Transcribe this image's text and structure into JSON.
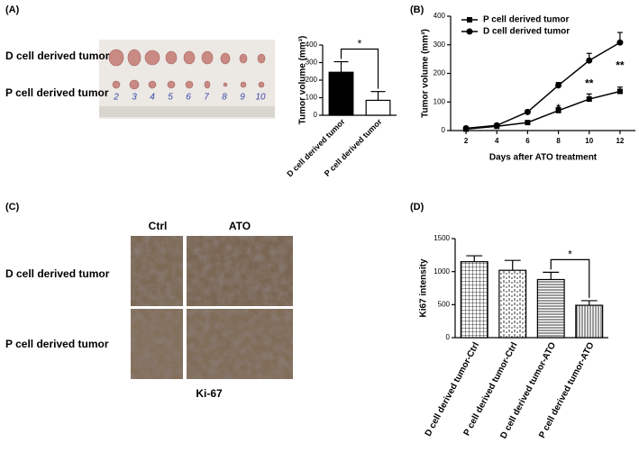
{
  "figure": {
    "panel_labels": [
      "(A)",
      "(B)",
      "(C)",
      "(D)"
    ],
    "photo": {
      "row_labels": [
        "D cell derived tumor",
        "P cell derived tumor"
      ],
      "numbers": [
        "2",
        "3",
        "4",
        "5",
        "6",
        "7",
        "8",
        "9",
        "10"
      ]
    },
    "staining": {
      "column_labels": [
        "Ctrl",
        "ATO"
      ],
      "row_labels": [
        "D cell derived tumor",
        "P cell derived tumor"
      ],
      "caption": "Ki-67"
    }
  },
  "chart_data": [
    {
      "type": "bar",
      "ylabel": "Tumor volume (mm³)",
      "categories": [
        "D cell derived tumor",
        "P cell derived tumor"
      ],
      "values": [
        245,
        85
      ],
      "errors": [
        60,
        50
      ],
      "colors": [
        "#000000",
        "#ffffff"
      ],
      "ylim": [
        0,
        400
      ],
      "yticks": [
        0,
        100,
        200,
        300,
        400
      ],
      "significance": [
        {
          "from": 0,
          "to": 1,
          "label": "*"
        }
      ]
    },
    {
      "type": "line",
      "xlabel": "Days after ATO treatment",
      "ylabel": "Tumor volume (mm³)",
      "x": [
        2,
        4,
        6,
        8,
        10,
        12
      ],
      "series": [
        {
          "name": "P cell derived tumor",
          "color": "#000000",
          "marker": "square",
          "values": [
            5,
            15,
            28,
            70,
            110,
            137
          ],
          "errors": [
            3,
            4,
            4,
            10,
            18,
            15
          ]
        },
        {
          "name": "D cell derived tumor",
          "color": "#000000",
          "marker": "circle",
          "values": [
            8,
            18,
            65,
            158,
            245,
            308
          ],
          "errors": [
            3,
            4,
            6,
            10,
            25,
            35
          ]
        }
      ],
      "xlim": [
        1,
        13
      ],
      "xticks": [
        2,
        4,
        6,
        8,
        10,
        12
      ],
      "ylim": [
        0,
        400
      ],
      "yticks": [
        0,
        100,
        200,
        300,
        400
      ],
      "legend": "top-left",
      "annotations": [
        {
          "x": 8,
          "label": "*"
        },
        {
          "x": 10,
          "label": "**"
        },
        {
          "x": 12,
          "label": "**"
        }
      ]
    },
    {
      "type": "bar",
      "ylabel": "Ki67 intensity",
      "categories": [
        "D cell derived tumor-Ctrl",
        "P cell derived tumor-Ctrl",
        "D cell derived tumor-ATO",
        "P cell derived tumor-ATO"
      ],
      "values": [
        1150,
        1020,
        880,
        490
      ],
      "errors": [
        90,
        150,
        110,
        70
      ],
      "patterns": [
        "grid",
        "dash",
        "horizontal",
        "vertical"
      ],
      "ylim": [
        0,
        1500
      ],
      "yticks": [
        0,
        500,
        1000,
        1500
      ],
      "significance": [
        {
          "from": 2,
          "to": 3,
          "label": "*"
        }
      ]
    }
  ]
}
